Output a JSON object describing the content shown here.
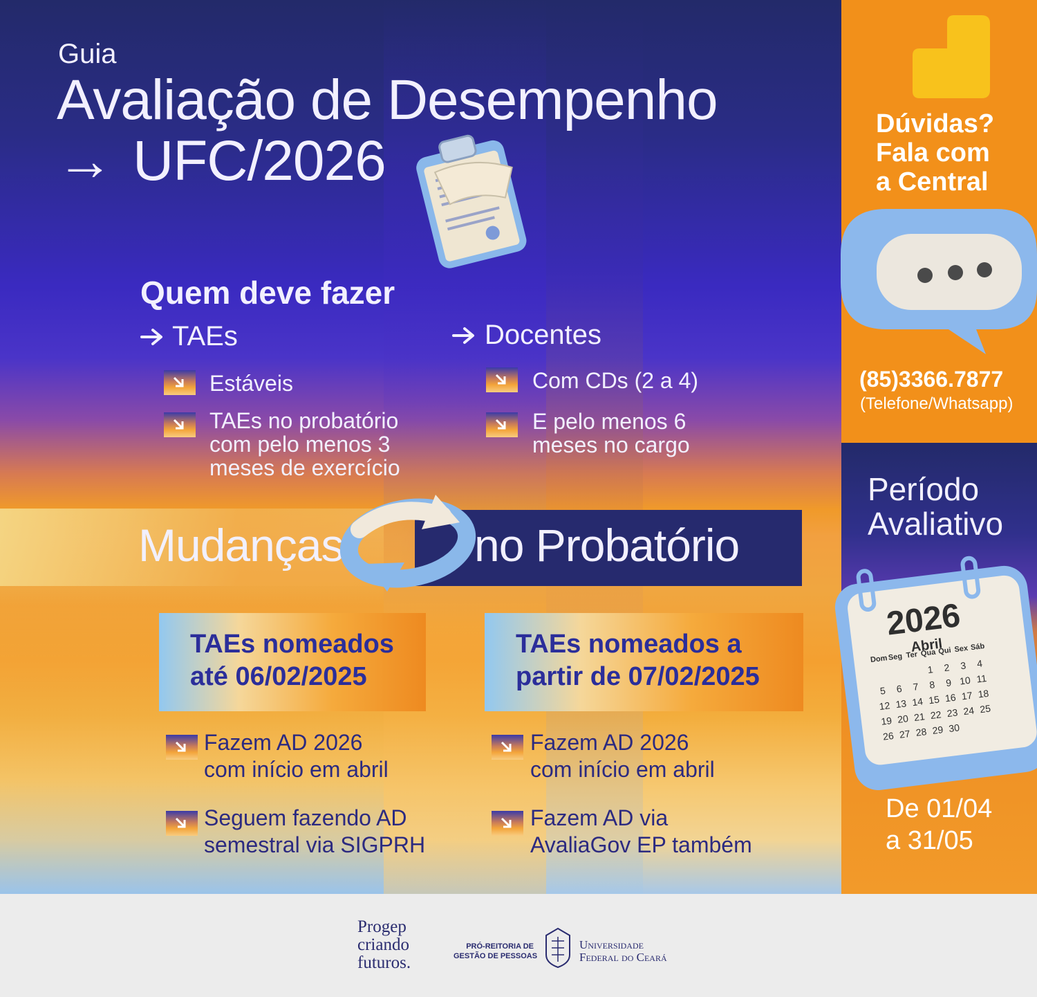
{
  "header": {
    "kicker": "Guia",
    "title": "Avaliação de Desempenho",
    "subtitle": "UFC/2026",
    "subtitle_arrow": "→"
  },
  "quem": {
    "title": "Quem deve fazer",
    "taes": {
      "label": "TAEs",
      "items": [
        "Estáveis",
        "TAEs no probatório",
        "com pelo menos 3",
        "meses de exercício"
      ]
    },
    "docentes": {
      "label": "Docentes",
      "items": [
        "Com CDs (2 a 4)",
        "E pelo menos 6",
        "meses no cargo"
      ]
    }
  },
  "mudancas": {
    "left": "Mudanças",
    "right": "no Probatório"
  },
  "colunas": [
    {
      "title_l1": "TAEs nomeados",
      "title_l2": "até 06/02/2025",
      "b1_l1": "Fazem AD 2026",
      "b1_l2": "com início em abril",
      "b2_l1": "Seguem fazendo AD",
      "b2_l2": "semestral via SIGPRH"
    },
    {
      "title_l1": "TAEs nomeados a",
      "title_l2": "partir de 07/02/2025",
      "b1_l1": "Fazem AD 2026",
      "b1_l2": "com início em abril",
      "b2_l1": "Fazem AD via",
      "b2_l2": "AvaliaGov EP também"
    }
  ],
  "central": {
    "l1": "Dúvidas?",
    "l2": "Fala com",
    "l3": "a Central",
    "phone": "(85)3366.7877",
    "phone_note": "(Telefone/Whatsapp)"
  },
  "periodo": {
    "l1": "Período",
    "l2": "Avaliativo",
    "range_l1": "De 01/04",
    "range_l2": "a 31/05"
  },
  "calendar": {
    "year": "2026",
    "month": "Abril",
    "weekdays": [
      "Dom",
      "Seg",
      "Ter",
      "Qua",
      "Qui",
      "Sex",
      "Sáb"
    ],
    "weeks": [
      [
        "",
        "",
        "",
        "1",
        "2",
        "3",
        "4"
      ],
      [
        "5",
        "6",
        "7",
        "8",
        "9",
        "10",
        "11"
      ],
      [
        "12",
        "13",
        "14",
        "15",
        "16",
        "17",
        "18"
      ],
      [
        "19",
        "20",
        "21",
        "22",
        "23",
        "24",
        "25"
      ],
      [
        "26",
        "27",
        "28",
        "29",
        "30",
        "",
        ""
      ]
    ]
  },
  "footer": {
    "progep_l1": "Progep",
    "progep_l2": "criando",
    "progep_l3": "futuros.",
    "prorei_l1": "PRÓ-REITORIA DE",
    "prorei_l2": "GESTÃO DE PESSOAS",
    "ufc_l1": "Universidade",
    "ufc_l2": "Federal do Ceará"
  },
  "colors": {
    "navy": "#232a6a",
    "orange": "#f2901a",
    "yellow": "#f8c21c",
    "text_blue": "#2b2e9a"
  }
}
